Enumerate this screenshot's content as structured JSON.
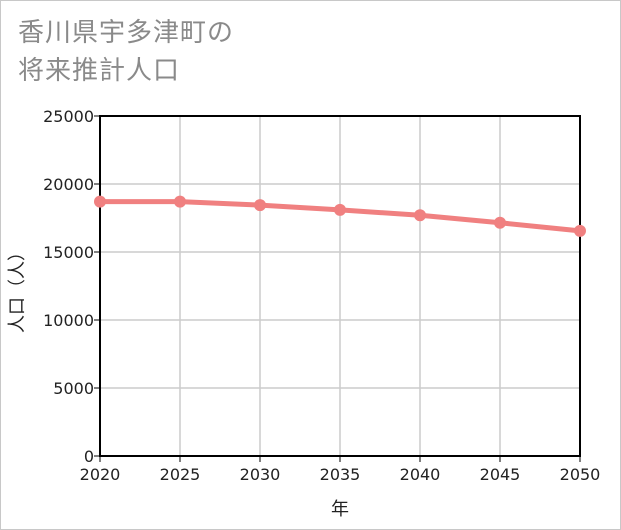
{
  "chart_data": {
    "type": "line",
    "title_lines": [
      "香川県宇多津町の",
      "将来推計人口"
    ],
    "xlabel": "年",
    "ylabel": "人口（人）",
    "x": [
      2020,
      2025,
      2030,
      2035,
      2040,
      2045,
      2050
    ],
    "series": [
      {
        "name": "人口",
        "values": [
          18700,
          18700,
          18450,
          18100,
          17700,
          17150,
          16550
        ],
        "color": "#f08080"
      }
    ],
    "xlim": [
      2020,
      2050
    ],
    "ylim": [
      0,
      25000
    ],
    "yticks": [
      0,
      5000,
      10000,
      15000,
      20000,
      25000
    ],
    "xticks": [
      2020,
      2025,
      2030,
      2035,
      2040,
      2045,
      2050
    ],
    "grid": true
  },
  "colors": {
    "grid": "#cccccc",
    "axis": "#000000",
    "title": "#8a8a8a",
    "series": "#f08080"
  }
}
